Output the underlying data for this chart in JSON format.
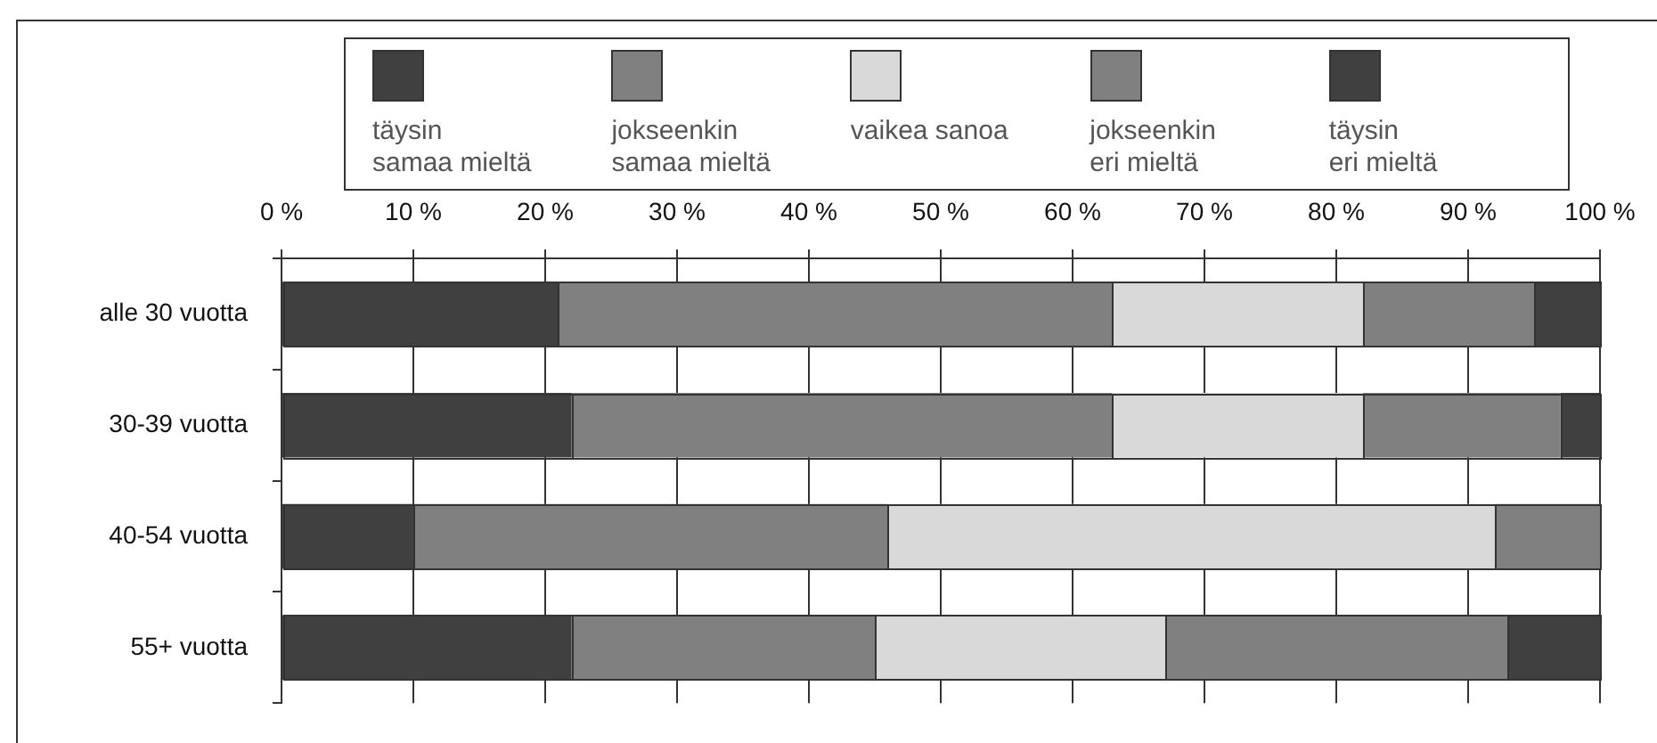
{
  "chart_data": {
    "type": "bar",
    "orientation": "horizontal",
    "stacked": true,
    "categories": [
      "alle 30 vuotta",
      "30-39 vuotta",
      "40-54 vuotta",
      "55+ vuotta"
    ],
    "series": [
      {
        "name": "täysin\nsamaa mieltä",
        "color": "#404040",
        "values": [
          21,
          22,
          10,
          22
        ]
      },
      {
        "name": "jokseenkin\nsamaa mieltä",
        "color": "#808080",
        "values": [
          42,
          41,
          36,
          23
        ]
      },
      {
        "name": "vaikea sanoa",
        "color": "#d9d9d9",
        "values": [
          19,
          19,
          46,
          22
        ]
      },
      {
        "name": "jokseenkin\neri mieltä",
        "color": "#808080",
        "values": [
          13,
          15,
          8,
          26
        ]
      },
      {
        "name": "täysin\neri mieltä",
        "color": "#404040",
        "values": [
          5,
          3,
          0,
          7
        ]
      }
    ],
    "xlim": [
      0,
      100
    ],
    "xticks": [
      {
        "value": 0,
        "label": "0 %"
      },
      {
        "value": 10,
        "label": "10 %"
      },
      {
        "value": 20,
        "label": "20 %"
      },
      {
        "value": 30,
        "label": "30 %"
      },
      {
        "value": 40,
        "label": "40 %"
      },
      {
        "value": 50,
        "label": "50 %"
      },
      {
        "value": 60,
        "label": "60 %"
      },
      {
        "value": 70,
        "label": "70 %"
      },
      {
        "value": 80,
        "label": "80 %"
      },
      {
        "value": 90,
        "label": "90 %"
      },
      {
        "value": 100,
        "label": "100 %"
      }
    ],
    "grid": "x",
    "legend": "top"
  }
}
